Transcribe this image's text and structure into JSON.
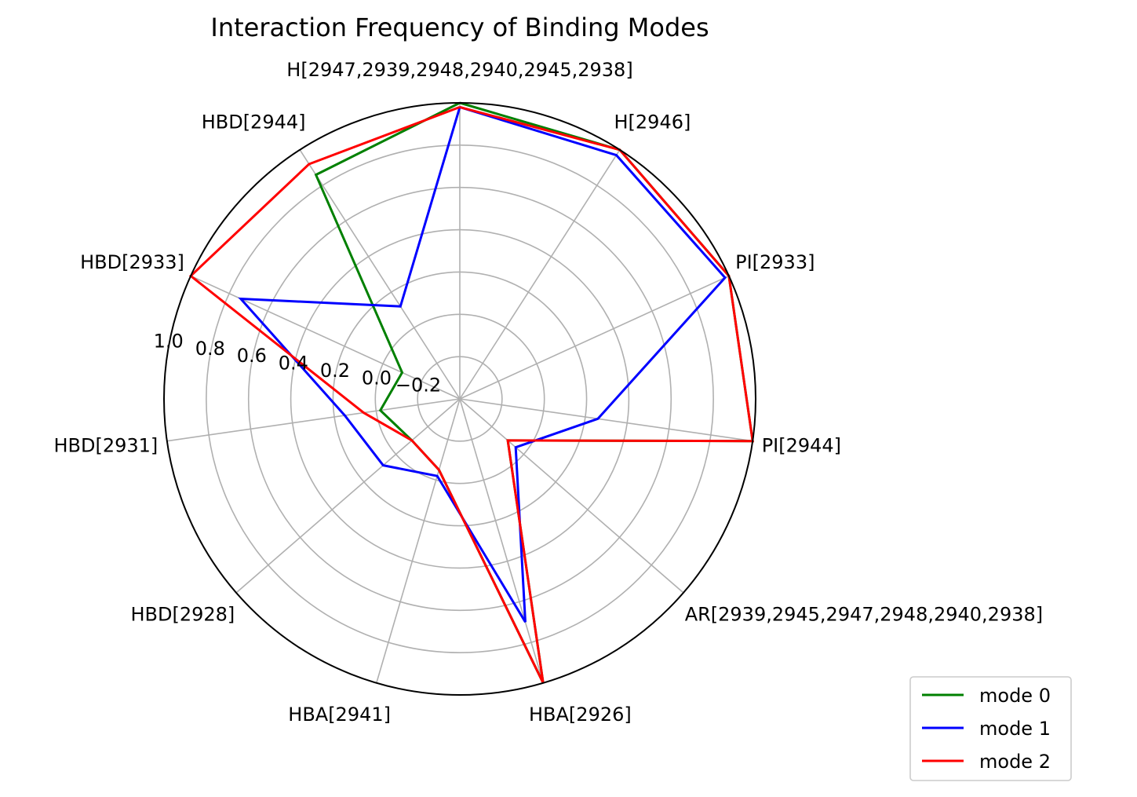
{
  "chart_data": {
    "type": "radar",
    "title": "Interaction Frequency of Binding Modes",
    "categories": [
      "H[2947,2939,2948,2940,2945,2938]",
      "H[2946]",
      "PI[2933]",
      "PI[2944]",
      "AR[2939,2945,2947,2948,2940,2938]",
      "HBA[2926]",
      "HBA[2941]",
      "HBD[2928]",
      "HBD[2931]",
      "HBD[2933]",
      "HBD[2944]"
    ],
    "rlim": [
      -0.4,
      1.0
    ],
    "radial_ticks": [
      -0.2,
      0.0,
      0.2,
      0.4,
      0.6,
      0.8,
      1.0
    ],
    "radial_tick_labels": [
      "−0.2",
      "0.0",
      "0.2",
      "0.4",
      "0.6",
      "0.8",
      "1.0"
    ],
    "grid": true,
    "legend_position": "lower-right",
    "series": [
      {
        "name": "mode 0",
        "color": "#008000",
        "values": [
          1.0,
          1.0,
          1.0,
          1.0,
          -0.1,
          1.0,
          -0.05,
          -0.1,
          -0.02,
          -0.1,
          0.86
        ]
      },
      {
        "name": "mode 1",
        "color": "#0000ff",
        "values": [
          0.98,
          0.97,
          0.98,
          0.26,
          -0.05,
          0.7,
          -0.02,
          0.08,
          0.15,
          0.74,
          0.12
        ]
      },
      {
        "name": "mode 2",
        "color": "#ff0000",
        "values": [
          0.98,
          1.0,
          1.0,
          1.0,
          -0.1,
          1.0,
          -0.05,
          -0.1,
          0.06,
          1.0,
          0.92
        ]
      }
    ]
  }
}
